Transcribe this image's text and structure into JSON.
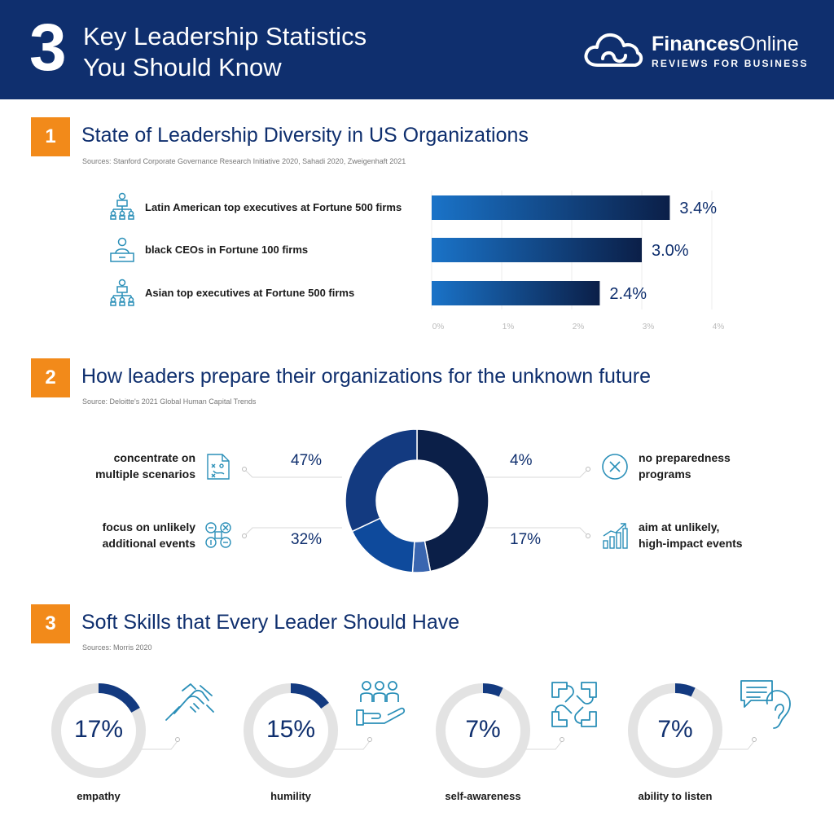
{
  "header": {
    "number": "3",
    "title_line1": "Key Leadership Statistics",
    "title_line2": "You Should Know",
    "brand_bold": "Finances",
    "brand_light": "Online",
    "brand_tagline": "REVIEWS FOR BUSINESS"
  },
  "section1": {
    "number": "1",
    "title": "State of Leadership Diversity in US Organizations",
    "source": "Sources: Stanford Corporate Governance Research Initiative 2020, Sahadi 2020, Zweigenhaft 2021"
  },
  "section2": {
    "number": "2",
    "title": "How leaders prepare their organizations for the unknown future",
    "source": "Source: Deloitte's 2021 Global Human Capital Trends",
    "labels": {
      "multiple_l1": "concentrate on",
      "multiple_l2": "multiple scenarios",
      "unlikely_l1": "focus on unlikely",
      "unlikely_l2": "additional events",
      "none_l1": "no preparedness",
      "none_l2": "programs",
      "impact_l1": "aim at unlikely,",
      "impact_l2": "high-impact events"
    },
    "pcts": {
      "multiple": "47%",
      "unlikely": "32%",
      "none": "4%",
      "impact": "17%"
    }
  },
  "section3": {
    "number": "3",
    "title": "Soft Skills that Every Leader Should Have",
    "source": "Sources: Morris 2020",
    "skills": [
      {
        "pct": "17%",
        "label": "empathy",
        "icon": "handshake-icon"
      },
      {
        "pct": "15%",
        "label": "humility",
        "icon": "team-hand-icon"
      },
      {
        "pct": "7%",
        "label": "self-awareness",
        "icon": "linked-hands-icon"
      },
      {
        "pct": "7%",
        "label": "ability to listen",
        "icon": "ear-speech-icon"
      }
    ]
  },
  "colors": {
    "navy": "#0f2f6e",
    "orange": "#f28a1a",
    "blue": "#1a73c8",
    "dark_navy": "#0b1f48",
    "mid_navy": "#133a80",
    "blue2": "#0e4a9c",
    "light_blue": "#3a66b0",
    "teal_icon": "#2a8fb8",
    "ring_gray": "#e3e3e3"
  },
  "chart_data": [
    {
      "type": "bar",
      "orientation": "horizontal",
      "categories": [
        "Latin American top executives at Fortune 500 firms",
        "black CEOs in Fortune 100 firms",
        "Asian top executives at Fortune 500 firms"
      ],
      "values": [
        3.4,
        3.0,
        2.4
      ],
      "value_labels": [
        "3.4%",
        "3.0%",
        "2.4%"
      ],
      "xlim": [
        0,
        4
      ],
      "ticks": [
        "0%",
        "1%",
        "2%",
        "3%",
        "4%"
      ],
      "grid": true
    },
    {
      "type": "pie",
      "style": "donut",
      "categories": [
        "concentrate on multiple scenarios",
        "no preparedness programs",
        "aim at unlikely, high-impact events",
        "focus on unlikely additional events"
      ],
      "values": [
        47,
        4,
        17,
        32
      ],
      "colors": [
        "#0b1f48",
        "#3a66b0",
        "#0e4a9c",
        "#133a80"
      ]
    },
    {
      "type": "pie",
      "style": "progress-rings",
      "categories": [
        "empathy",
        "humility",
        "self-awareness",
        "ability to listen"
      ],
      "values": [
        17,
        15,
        7,
        7
      ]
    }
  ]
}
